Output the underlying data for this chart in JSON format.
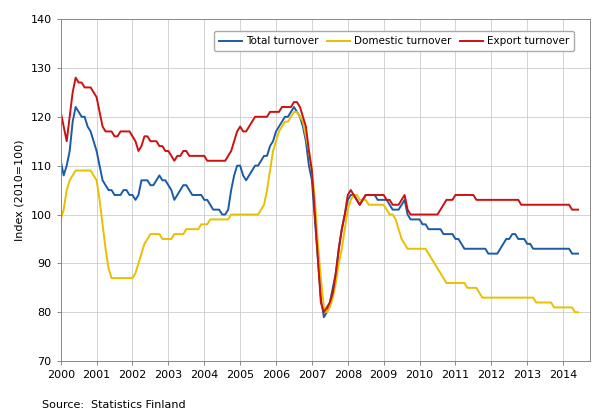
{
  "ylabel": "Index (2010=100)",
  "source": "Source:  Statistics Finland",
  "ylim": [
    70,
    140
  ],
  "yticks": [
    70,
    80,
    90,
    100,
    110,
    120,
    130,
    140
  ],
  "xlim": [
    2000,
    2014.75
  ],
  "xticks": [
    2000,
    2001,
    2002,
    2003,
    2004,
    2005,
    2006,
    2007,
    2008,
    2009,
    2010,
    2011,
    2012,
    2013,
    2014
  ],
  "legend_labels": [
    "Total turnover",
    "Domestic turnover",
    "Export turnover"
  ],
  "colors": {
    "total": "#1a5ca8",
    "domestic": "#e8c000",
    "export": "#cc1111"
  },
  "line_width": 1.4,
  "total_turnover": [
    111,
    108,
    110,
    113,
    119,
    122,
    121,
    120,
    120,
    118,
    117,
    115,
    113,
    110,
    107,
    106,
    105,
    105,
    104,
    104,
    104,
    105,
    105,
    104,
    104,
    103,
    104,
    107,
    107,
    107,
    106,
    106,
    107,
    108,
    107,
    107,
    106,
    105,
    103,
    104,
    105,
    106,
    106,
    105,
    104,
    104,
    104,
    104,
    103,
    103,
    102,
    101,
    101,
    101,
    100,
    100,
    101,
    105,
    108,
    110,
    110,
    108,
    107,
    108,
    109,
    110,
    110,
    111,
    112,
    112,
    114,
    115,
    117,
    118,
    119,
    120,
    120,
    121,
    122,
    121,
    120,
    118,
    115,
    110,
    107,
    99,
    91,
    83,
    79,
    80,
    82,
    85,
    88,
    93,
    97,
    100,
    103,
    104,
    104,
    103,
    102,
    103,
    104,
    104,
    104,
    104,
    103,
    103,
    103,
    103,
    102,
    101,
    101,
    101,
    102,
    103,
    100,
    99,
    99,
    99,
    99,
    98,
    98,
    97,
    97,
    97,
    97,
    97,
    96,
    96,
    96,
    96,
    95,
    95,
    94,
    93,
    93,
    93,
    93,
    93,
    93,
    93,
    93,
    92,
    92,
    92,
    92,
    93,
    94,
    95,
    95,
    96,
    96,
    95,
    95,
    95,
    94,
    94,
    93,
    93,
    93,
    93,
    93,
    93,
    93,
    93,
    93,
    93,
    93,
    93,
    93,
    92,
    92,
    92
  ],
  "domestic_turnover": [
    99,
    101,
    105,
    107,
    108,
    109,
    109,
    109,
    109,
    109,
    109,
    108,
    107,
    103,
    98,
    93,
    89,
    87,
    87,
    87,
    87,
    87,
    87,
    87,
    87,
    88,
    90,
    92,
    94,
    95,
    96,
    96,
    96,
    96,
    95,
    95,
    95,
    95,
    96,
    96,
    96,
    96,
    97,
    97,
    97,
    97,
    97,
    98,
    98,
    98,
    99,
    99,
    99,
    99,
    99,
    99,
    99,
    100,
    100,
    100,
    100,
    100,
    100,
    100,
    100,
    100,
    100,
    101,
    102,
    105,
    109,
    113,
    115,
    117,
    118,
    119,
    119,
    120,
    121,
    121,
    120,
    119,
    116,
    113,
    109,
    103,
    94,
    87,
    81,
    80,
    81,
    83,
    86,
    90,
    93,
    97,
    101,
    103,
    104,
    104,
    103,
    103,
    103,
    102,
    102,
    102,
    102,
    102,
    102,
    101,
    100,
    100,
    99,
    97,
    95,
    94,
    93,
    93,
    93,
    93,
    93,
    93,
    93,
    92,
    91,
    90,
    89,
    88,
    87,
    86,
    86,
    86,
    86,
    86,
    86,
    86,
    85,
    85,
    85,
    85,
    84,
    83,
    83,
    83,
    83,
    83,
    83,
    83,
    83,
    83,
    83,
    83,
    83,
    83,
    83,
    83,
    83,
    83,
    83,
    82,
    82,
    82,
    82,
    82,
    82,
    81,
    81,
    81,
    81,
    81,
    81,
    81,
    80,
    80
  ],
  "export_turnover": [
    121,
    118,
    115,
    120,
    125,
    128,
    127,
    127,
    126,
    126,
    126,
    125,
    124,
    121,
    118,
    117,
    117,
    117,
    116,
    116,
    117,
    117,
    117,
    117,
    116,
    115,
    113,
    114,
    116,
    116,
    115,
    115,
    115,
    114,
    114,
    113,
    113,
    112,
    111,
    112,
    112,
    113,
    113,
    112,
    112,
    112,
    112,
    112,
    112,
    111,
    111,
    111,
    111,
    111,
    111,
    111,
    112,
    113,
    115,
    117,
    118,
    117,
    117,
    118,
    119,
    120,
    120,
    120,
    120,
    120,
    121,
    121,
    121,
    121,
    122,
    122,
    122,
    122,
    123,
    123,
    122,
    120,
    118,
    113,
    109,
    100,
    91,
    82,
    80,
    81,
    82,
    84,
    88,
    93,
    97,
    100,
    104,
    105,
    104,
    103,
    102,
    103,
    104,
    104,
    104,
    104,
    104,
    104,
    104,
    103,
    103,
    102,
    102,
    102,
    103,
    104,
    101,
    100,
    100,
    100,
    100,
    100,
    100,
    100,
    100,
    100,
    100,
    101,
    102,
    103,
    103,
    103,
    104,
    104,
    104,
    104,
    104,
    104,
    104,
    103,
    103,
    103,
    103,
    103,
    103,
    103,
    103,
    103,
    103,
    103,
    103,
    103,
    103,
    103,
    102,
    102,
    102,
    102,
    102,
    102,
    102,
    102,
    102,
    102,
    102,
    102,
    102,
    102,
    102,
    102,
    102,
    101,
    101,
    101
  ]
}
